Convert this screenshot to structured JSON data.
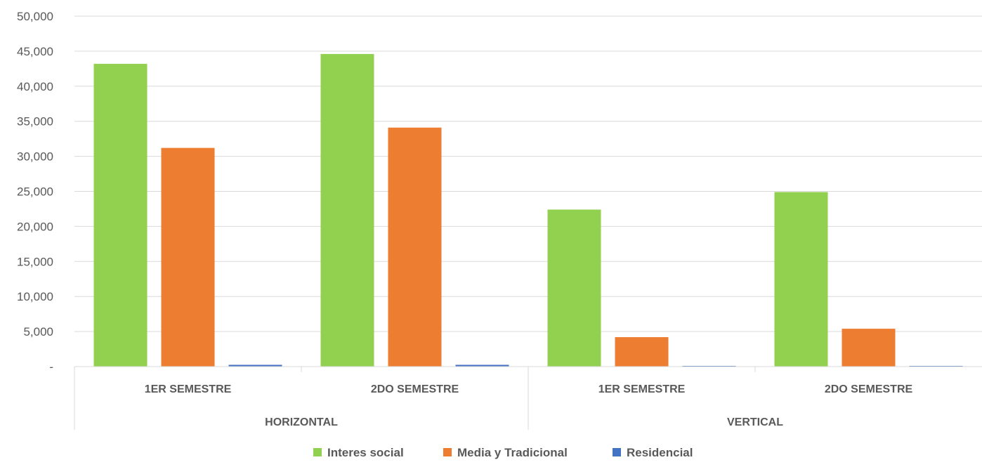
{
  "chart_data": {
    "type": "bar",
    "group_labels": [
      "HORIZONTAL",
      "VERTICAL"
    ],
    "categories": [
      "1ER SEMESTRE",
      "2DO SEMESTRE",
      "1ER SEMESTRE",
      "2DO SEMESTRE"
    ],
    "series": [
      {
        "name": "Interes social",
        "color": "#92d050",
        "values": [
          43200,
          44600,
          22400,
          24900
        ]
      },
      {
        "name": "Media y Tradicional",
        "color": "#ed7d31",
        "values": [
          31200,
          34100,
          4200,
          5400
        ]
      },
      {
        "name": "Residencial",
        "color": "#4472c4",
        "values": [
          250,
          250,
          100,
          100
        ]
      }
    ],
    "y_ticks": [
      "-",
      "5,000",
      "10,000",
      "15,000",
      "20,000",
      "25,000",
      "30,000",
      "35,000",
      "40,000",
      "45,000",
      "50,000"
    ],
    "ylim": [
      0,
      50000
    ],
    "grid": true,
    "legend_position": "bottom"
  }
}
